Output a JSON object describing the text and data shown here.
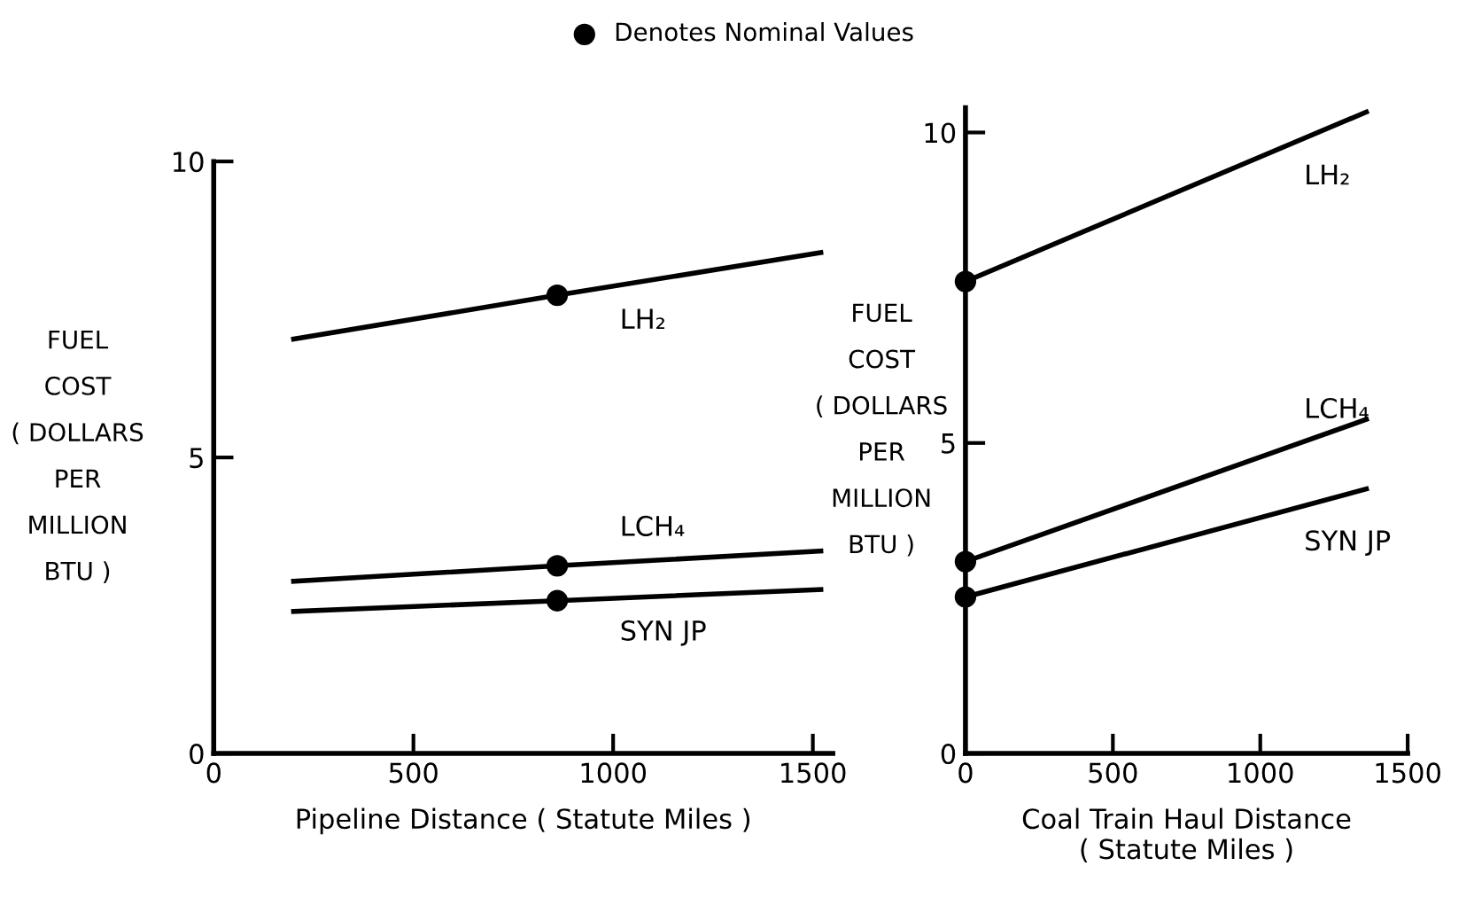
{
  "chart_data": [
    {
      "type": "line",
      "xlabel": "Pipeline Distance ( Statute Miles )",
      "ylabel": "FUEL\nCOST\n( DOLLARS\nPER\nMILLION\nBTU )",
      "xlim": [
        0,
        1550
      ],
      "ylim": [
        0,
        10
      ],
      "xticks": [
        0,
        500,
        1000,
        1500
      ],
      "yticks": [
        0,
        5,
        10
      ],
      "grid": false,
      "legend": "top",
      "line_style": "solid",
      "series": [
        {
          "name": "LH₂",
          "color": "#000000",
          "x": [
            200,
            860,
            1520
          ],
          "values": [
            7.0,
            7.74,
            8.46
          ]
        },
        {
          "name": "LCH₄",
          "color": "#000000",
          "x": [
            200,
            860,
            1520
          ],
          "values": [
            2.91,
            3.17,
            3.42
          ]
        },
        {
          "name": "SYN JP",
          "color": "#000000",
          "x": [
            200,
            860,
            1520
          ],
          "values": [
            2.4,
            2.58,
            2.77
          ]
        },
        {
          "name": "Denotes Nominal Values",
          "type": "scatter",
          "marker": "circle",
          "color": "#000000",
          "x": [
            860,
            860,
            860
          ],
          "values": [
            7.74,
            3.17,
            2.58
          ]
        }
      ]
    },
    {
      "type": "line",
      "xlabel": "Coal Train Haul Distance\n( Statute Miles )",
      "ylabel": "FUEL\nCOST\n( DOLLARS\nPER\nMILLION\nBTU )",
      "xlim": [
        0,
        1500
      ],
      "ylim": [
        0,
        10.4
      ],
      "xticks": [
        0,
        500,
        1000,
        1500
      ],
      "yticks": [
        0,
        5,
        10
      ],
      "grid": false,
      "line_style": "solid",
      "series": [
        {
          "name": "LH₂",
          "color": "#000000",
          "x": [
            0,
            1360
          ],
          "values": [
            7.6,
            10.33
          ]
        },
        {
          "name": "LCH₄",
          "color": "#000000",
          "x": [
            0,
            1360
          ],
          "values": [
            3.09,
            5.38
          ]
        },
        {
          "name": "SYN JP",
          "color": "#000000",
          "x": [
            0,
            1360
          ],
          "values": [
            2.52,
            4.26
          ]
        },
        {
          "type": "scatter",
          "marker": "circle",
          "color": "#000000",
          "x": [
            0,
            0,
            0
          ],
          "values": [
            7.6,
            3.09,
            2.52
          ]
        }
      ]
    }
  ]
}
